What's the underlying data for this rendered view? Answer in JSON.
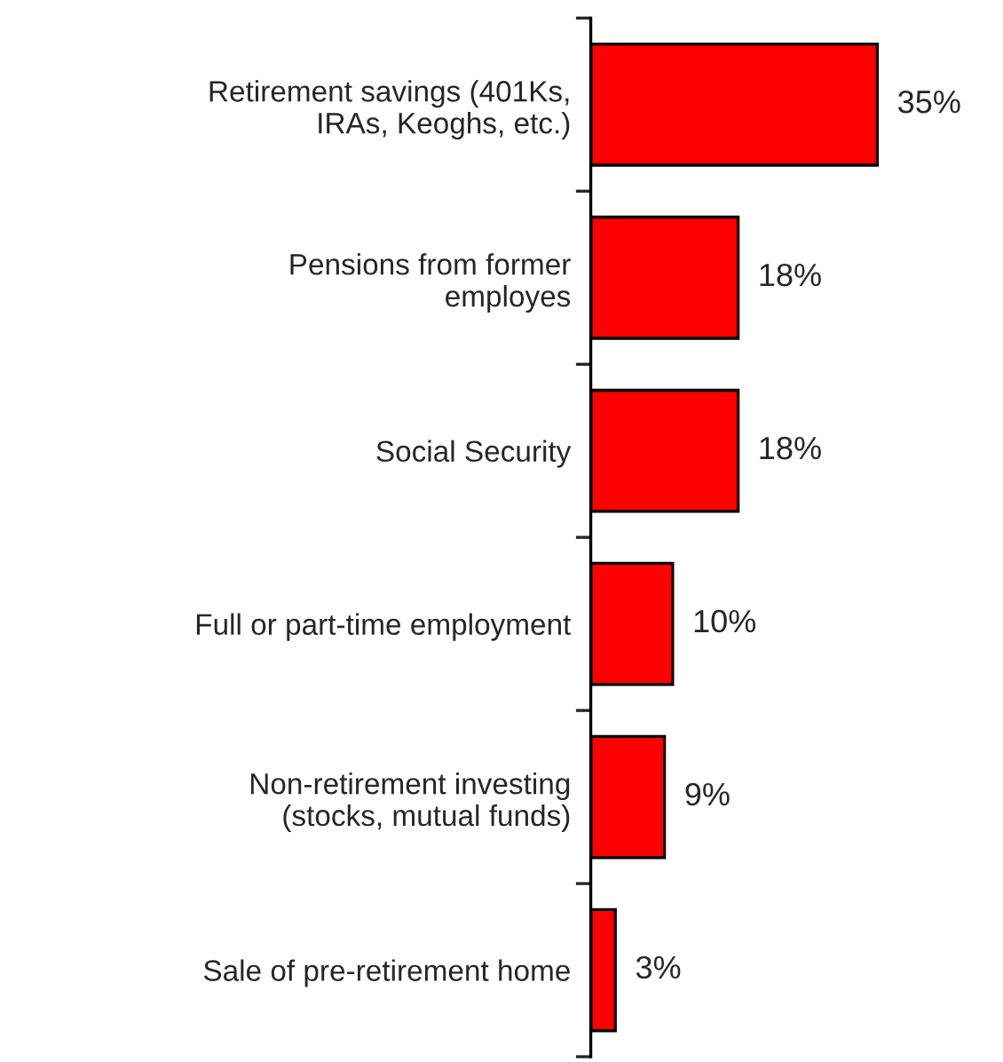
{
  "chart_data": {
    "type": "bar",
    "orientation": "horizontal",
    "categories": [
      "Retirement savings (401Ks,\nIRAs, Keoghs, etc.)",
      "Pensions from former\nemployes",
      "Social Security",
      "Full or part-time employment",
      "Non-retirement investing\n(stocks, mutual funds)",
      "Sale of pre-retirement home"
    ],
    "values": [
      35,
      18,
      18,
      10,
      9,
      3
    ],
    "value_labels": [
      "35%",
      "18%",
      "18%",
      "10%",
      "9%",
      "3%"
    ],
    "color": "#ff0000",
    "grid": false,
    "legend": false
  }
}
